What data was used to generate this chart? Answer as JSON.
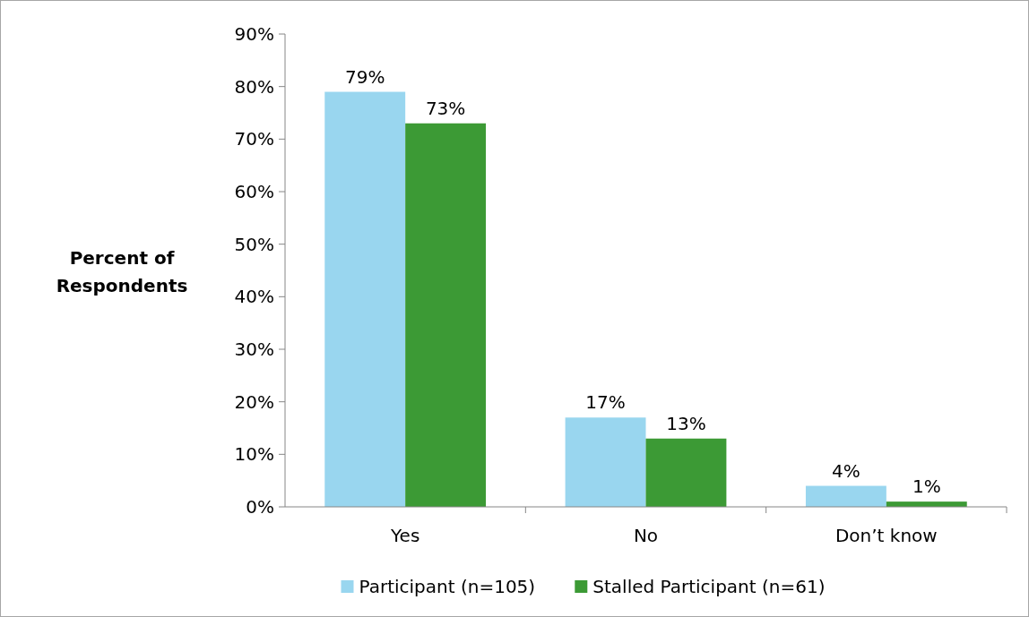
{
  "chart_data": {
    "type": "bar",
    "ylabel": "Percent of Respondents",
    "categories": [
      "Yes",
      "No",
      "Don’t know"
    ],
    "series": [
      {
        "name": "Participant (n=105)",
        "color": "#99d6ef",
        "values": [
          79,
          17,
          4
        ],
        "value_labels": [
          "79%",
          "17%",
          "4%"
        ]
      },
      {
        "name": "Stalled Participant (n=61)",
        "color": "#3c9a35",
        "values": [
          73,
          13,
          1
        ],
        "value_labels": [
          "73%",
          "13%",
          "1%"
        ]
      }
    ],
    "ylim": [
      0,
      90
    ],
    "yticks": [
      {
        "value": 0,
        "label": "0%"
      },
      {
        "value": 10,
        "label": "10%"
      },
      {
        "value": 20,
        "label": "20%"
      },
      {
        "value": 30,
        "label": "30%"
      },
      {
        "value": 40,
        "label": "40%"
      },
      {
        "value": 50,
        "label": "50%"
      },
      {
        "value": 60,
        "label": "60%"
      },
      {
        "value": 70,
        "label": "70%"
      },
      {
        "value": 80,
        "label": "80%"
      },
      {
        "value": 90,
        "label": "90%"
      }
    ],
    "grid": false,
    "legend": "bottom"
  }
}
